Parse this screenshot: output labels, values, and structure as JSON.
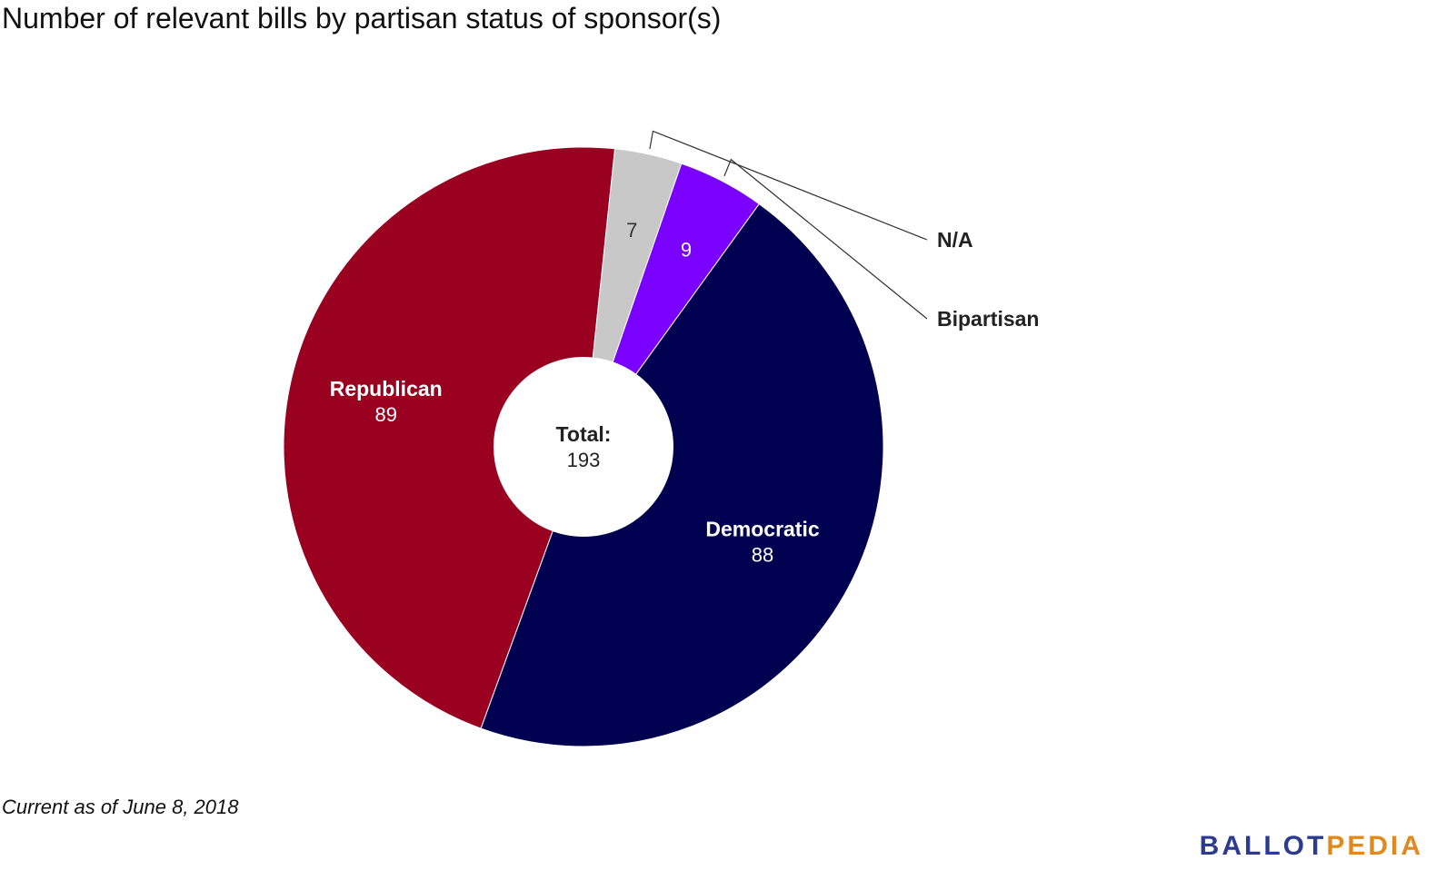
{
  "chart_data": {
    "type": "pie",
    "title": "Number of relevant bills by partisan status of sponsor(s)",
    "total_label": "Total:",
    "total_value": "193",
    "slices": [
      {
        "label": "Republican",
        "value": 89,
        "value_label": "89",
        "color": "#9a0020"
      },
      {
        "label": "N/A",
        "value": 7,
        "value_label": "7",
        "color": "#c8c8c8"
      },
      {
        "label": "Bipartisan",
        "value": 9,
        "value_label": "9",
        "color": "#7a00ff"
      },
      {
        "label": "Democratic",
        "value": 88,
        "value_label": "88",
        "color": "#000050"
      }
    ]
  },
  "footnote": "Current as of June 8, 2018",
  "logo": {
    "part1": "BALLOT",
    "part2": "PEDIA"
  }
}
